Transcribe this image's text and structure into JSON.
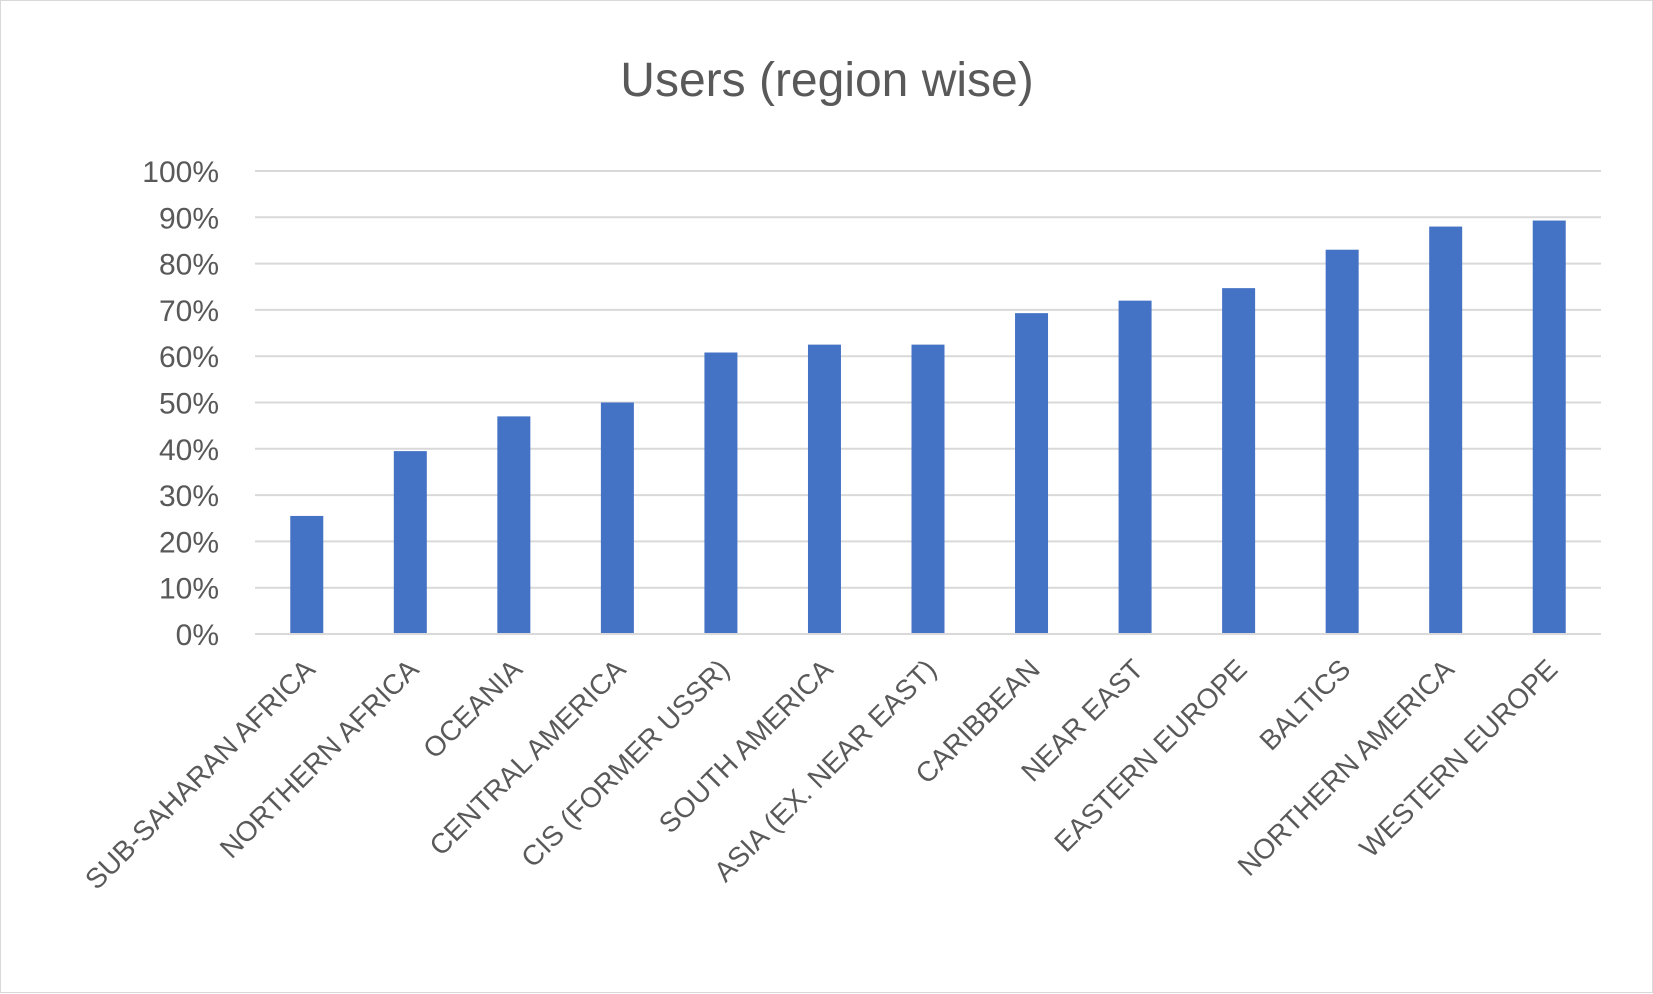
{
  "chart_data": {
    "type": "bar",
    "title": "Users (region wise)",
    "xlabel": "",
    "ylabel": "",
    "ylim": [
      0,
      100
    ],
    "yticks": [
      "0%",
      "10%",
      "20%",
      "30%",
      "40%",
      "50%",
      "60%",
      "70%",
      "80%",
      "90%",
      "100%"
    ],
    "grid": true,
    "legend": "none",
    "bar_color": "#4472C4",
    "categories": [
      "SUB-SAHARAN AFRICA",
      "NORTHERN AFRICA",
      "OCEANIA",
      "CENTRAL AMERICA",
      "CIS (FORMER USSR)",
      "SOUTH AMERICA",
      "ASIA (EX. NEAR EAST)",
      "CARIBBEAN",
      "NEAR EAST",
      "EASTERN EUROPE",
      "BALTICS",
      "NORTHERN AMERICA",
      "WESTERN EUROPE"
    ],
    "values": [
      25.5,
      39.5,
      47,
      50,
      60.8,
      62.5,
      62.5,
      69.3,
      72,
      74.7,
      83,
      88,
      89.3
    ]
  }
}
